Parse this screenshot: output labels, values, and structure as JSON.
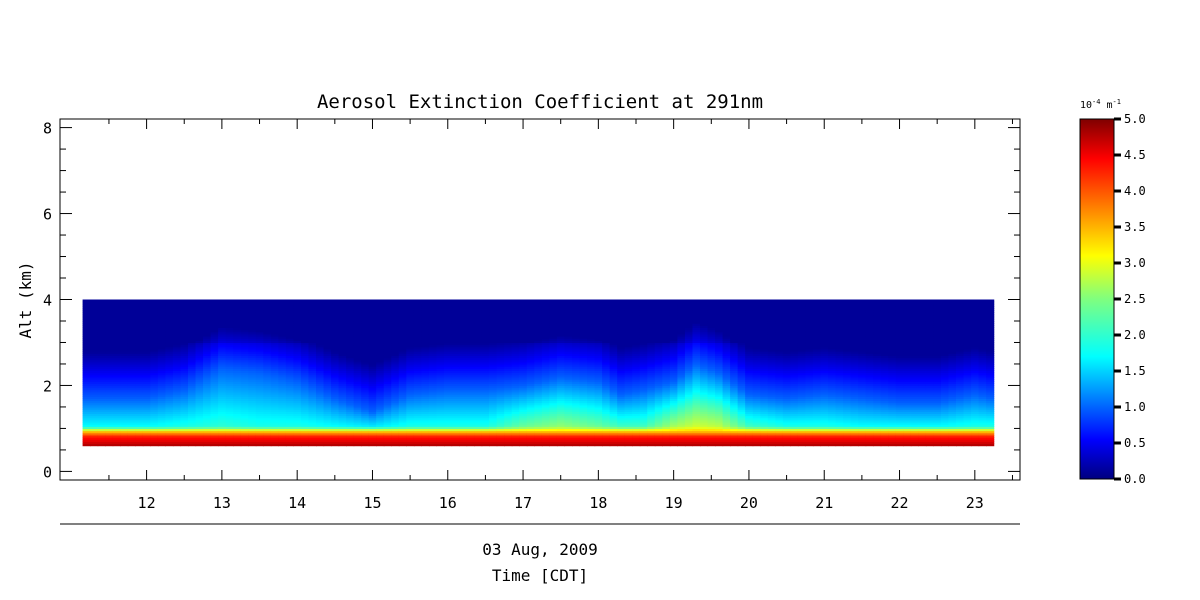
{
  "chart_data": {
    "type": "heatmap",
    "title": "Aerosol Extinction Coefficient at 291nm",
    "xlabel_date": "03 Aug, 2009",
    "xlabel": "Time [CDT]",
    "ylabel": "Alt (km)",
    "xlim": [
      10.85,
      23.6
    ],
    "ylim": [
      -0.2,
      8.2
    ],
    "xticks": [
      12,
      13,
      14,
      15,
      16,
      17,
      18,
      19,
      20,
      21,
      22,
      23
    ],
    "yticks": [
      0,
      2,
      4,
      6,
      8
    ],
    "data_extent": {
      "x": [
        11.15,
        23.25
      ],
      "y": [
        0.6,
        4.0
      ]
    },
    "colormap": "jet",
    "colorbar": {
      "unit_base": "10",
      "unit_exp": "-4",
      "unit_m": " m",
      "unit_mexp": "-1",
      "range": [
        0.0,
        5.0
      ],
      "ticks": [
        "0.0",
        "0.5",
        "1.0",
        "1.5",
        "2.0",
        "2.5",
        "3.0",
        "3.5",
        "4.0",
        "4.5",
        "5.0"
      ]
    },
    "profile": {
      "altitudes_km": [
        0.6,
        0.7,
        0.8,
        0.9,
        1.0,
        1.1,
        1.3,
        1.5,
        1.7,
        1.9,
        2.1,
        2.3,
        2.6,
        3.0,
        3.5,
        4.0
      ],
      "times": [
        11.2,
        12.0,
        12.5,
        13.0,
        13.5,
        14.0,
        14.5,
        15.0,
        15.5,
        16.0,
        16.5,
        17.0,
        17.5,
        18.0,
        18.3,
        18.6,
        19.0,
        19.3,
        19.6,
        20.0,
        20.5,
        21.0,
        21.5,
        22.0,
        22.5,
        23.0,
        23.25
      ],
      "layer_top_km": [
        1.7,
        1.7,
        1.9,
        2.4,
        2.3,
        2.1,
        1.7,
        1.4,
        1.8,
        1.9,
        1.9,
        2.0,
        2.2,
        2.1,
        1.8,
        1.9,
        2.1,
        2.5,
        2.3,
        1.8,
        1.7,
        1.8,
        1.7,
        1.6,
        1.6,
        1.8,
        1.7
      ],
      "layer_peak_coefficient": [
        1.9,
        1.9,
        2.0,
        2.1,
        2.0,
        2.0,
        1.9,
        1.8,
        2.0,
        2.0,
        2.0,
        2.4,
        2.6,
        2.4,
        2.2,
        2.2,
        2.7,
        2.9,
        2.8,
        2.2,
        2.0,
        2.0,
        1.9,
        1.9,
        1.9,
        2.0,
        2.0
      ]
    }
  }
}
